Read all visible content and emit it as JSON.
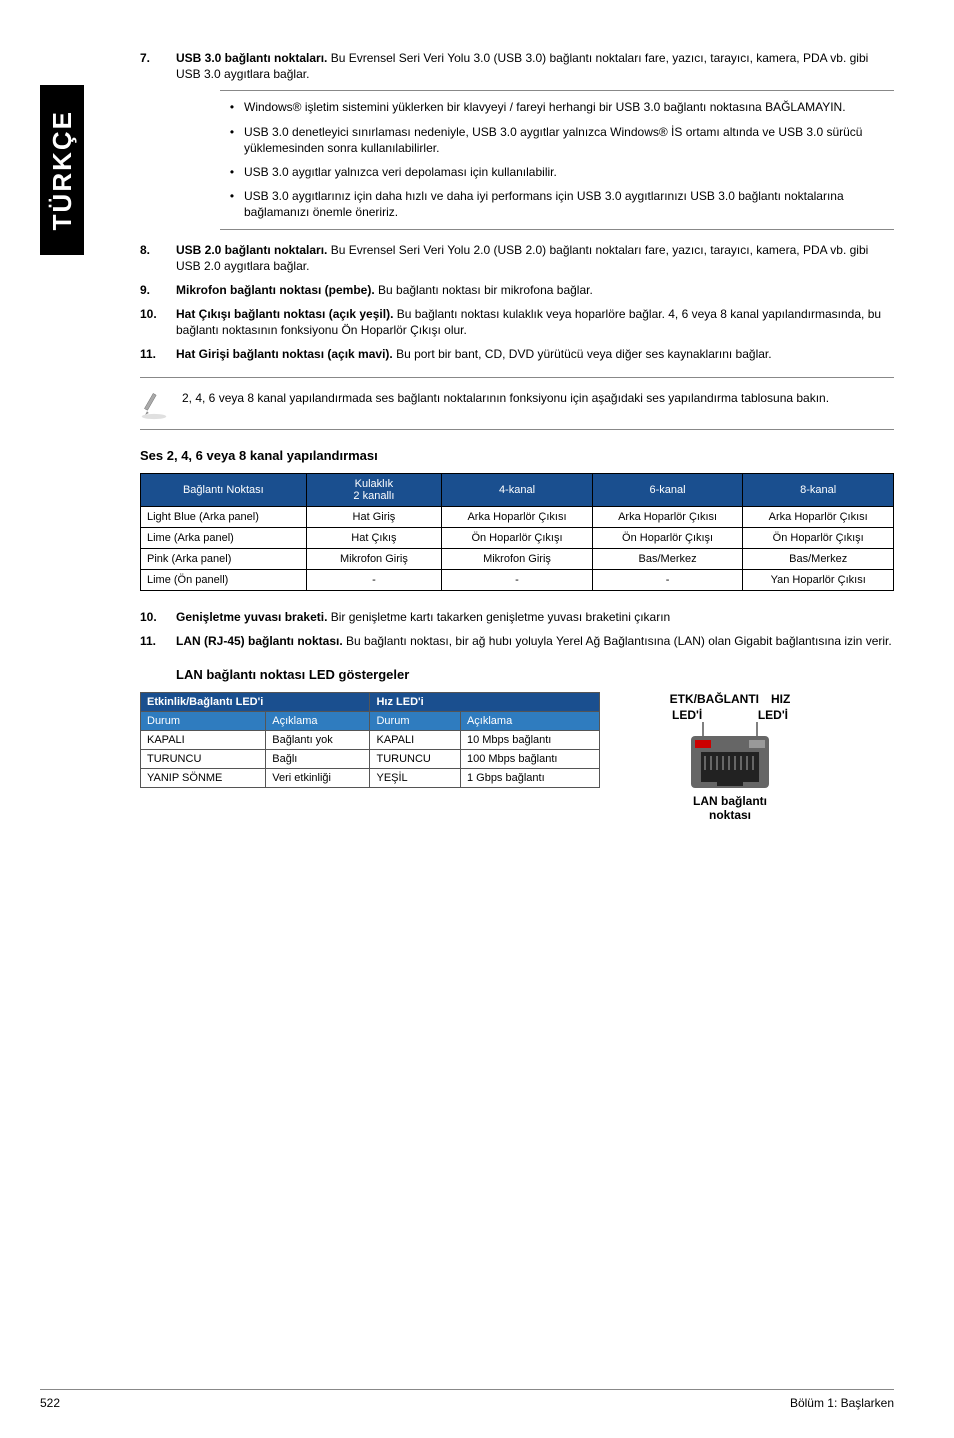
{
  "side_tab": "TÜRKÇE",
  "item7": {
    "num": "7.",
    "title": "USB 3.0 bağlantı noktaları.",
    "body": " Bu Evrensel Seri Veri Yolu 3.0 (USB 3.0) bağlantı noktaları fare, yazıcı, tarayıcı, kamera, PDA vb. gibi USB 3.0 aygıtlara bağlar."
  },
  "item7_bullets": [
    "Windows® işletim sistemini yüklerken bir klavyeyi / fareyi herhangi bir USB 3.0 bağlantı noktasına BAĞLAMAYIN.",
    "USB 3.0 denetleyici sınırlaması nedeniyle, USB 3.0 aygıtlar yalnızca Windows® İS ortamı altında ve USB 3.0 sürücü yüklemesinden sonra kullanılabilirler.",
    "USB 3.0 aygıtlar yalnızca veri depolaması için kullanılabilir.",
    "USB 3.0 aygıtlarınız için daha hızlı ve daha iyi performans için USB 3.0 aygıtlarınızı USB 3.0 bağlantı noktalarına bağlamanızı önemle öneririz."
  ],
  "item8": {
    "num": "8.",
    "title": "USB 2.0 bağlantı noktaları.",
    "body": " Bu Evrensel Seri Veri Yolu 2.0 (USB 2.0) bağlantı noktaları fare, yazıcı, tarayıcı, kamera, PDA vb. gibi USB 2.0 aygıtlara bağlar."
  },
  "item9": {
    "num": "9.",
    "title": "Mikrofon bağlantı noktası (pembe).",
    "body": " Bu bağlantı noktası bir mikrofona bağlar."
  },
  "item10": {
    "num": "10.",
    "title": "Hat Çıkışı bağlantı noktası (açık yeşil).",
    "body": " Bu bağlantı noktası kulaklık veya hoparlöre bağlar. 4, 6 veya 8 kanal yapılandırmasında, bu bağlantı noktasının fonksiyonu Ön Hoparlör Çıkışı olur."
  },
  "item11": {
    "num": "11.",
    "title": "Hat Girişi bağlantı noktası (açık mavi).",
    "body": " Bu port bir bant, CD, DVD yürütücü veya diğer ses kaynaklarını bağlar."
  },
  "note1": "2, 4, 6 veya 8 kanal yapılandırmada ses bağlantı noktalarının fonksiyonu için aşağıdaki ses yapılandırma tablosuna bakın.",
  "audio_heading": "Ses 2, 4, 6 veya 8 kanal yapılandırması",
  "audio_table": {
    "headers": [
      "Bağlantı Noktası",
      "Kulaklık\n2 kanallı",
      "4-kanal",
      "6-kanal",
      "8-kanal"
    ],
    "rows": [
      [
        "Light Blue (Arka panel)",
        "Hat Giriş",
        "Arka Hoparlör Çıkısı",
        "Arka Hoparlör Çıkısı",
        "Arka Hoparlör Çıkısı"
      ],
      [
        "Lime (Arka panel)",
        "Hat Çıkış",
        "Ön Hoparlör Çıkışı",
        "Ön Hoparlör Çıkışı",
        "Ön Hoparlör Çıkışı"
      ],
      [
        "Pink (Arka panel)",
        "Mikrofon Giriş",
        "Mikrofon Giriş",
        "Bas/Merkez",
        "Bas/Merkez"
      ],
      [
        "Lime (Ön panell)",
        "-",
        "-",
        "-",
        "Yan Hoparlör Çıkısı"
      ]
    ]
  },
  "item10b": {
    "num": "10.",
    "title": "Genişletme yuvası braketi.",
    "body": " Bir genişletme kartı takarken genişletme yuvası braketini çıkarın"
  },
  "item11b": {
    "num": "11.",
    "title": "LAN (RJ-45) bağlantı noktası.",
    "body": " Bu bağlantı noktası, bir ağ hubı yoluyla Yerel Ağ Bağlantısına (LAN) olan Gigabit bağlantısına izin verir."
  },
  "led_heading": "LAN bağlantı noktası LED göstergeler",
  "led_table": {
    "head_left": "Etkinlik/Bağlantı LED'i",
    "head_right": "Hız LED'i",
    "sub_headers": [
      "Durum",
      "Açıklama",
      "Durum",
      "Açıklama"
    ],
    "rows": [
      [
        "KAPALI",
        "Bağlantı yok",
        "KAPALI",
        "10 Mbps bağlantı"
      ],
      [
        "TURUNCU",
        "Bağlı",
        "TURUNCU",
        "100 Mbps bağlantı"
      ],
      [
        "YANIP SÖNME",
        "Veri etkinliği",
        "YEŞİL",
        "1 Gbps bağlantı"
      ]
    ]
  },
  "rj45": {
    "top_left": "ETK/BAĞLANTI",
    "top_right": "HIZ",
    "sub_left": "LED'İ",
    "sub_right": "LED'İ",
    "bottom1": "LAN bağlantı",
    "bottom2": "noktası"
  },
  "footer": {
    "page": "522",
    "section": "Bölüm 1:  Başlarken"
  }
}
